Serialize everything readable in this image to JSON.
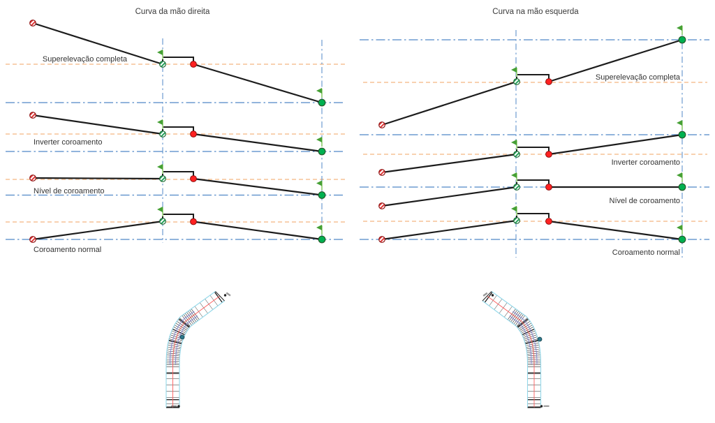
{
  "diagram": {
    "left_panel": {
      "title": "Curva da mão direita",
      "stages": [
        "Superelevação completa",
        "Inverter coroamento",
        "Nível de coroamento",
        "Coroamento normal"
      ]
    },
    "right_panel": {
      "title": "Curva na mão esquerda",
      "stages": [
        "Superelevação completa",
        "Inverter coroamento",
        "Nível de coroamento",
        "Coroamento normal"
      ]
    },
    "icons": {
      "start_marker": "red-hatched-circle",
      "crown_marker": "green-hatched-circle",
      "runoff_marker": "red-dot",
      "full_superelevation_marker": "green-dot",
      "station_flag": "green-flag"
    },
    "colors": {
      "profile_line": "#1c1c1c",
      "guide_dashed_orange": "#F5C296",
      "guide_dashdot_blue": "#4F87C7",
      "marker_red_fill": "#FF2121",
      "marker_red_border": "#8F1010",
      "marker_green_fill": "#00B050",
      "marker_green_border": "#245B2A",
      "flag_pole_green": "#A5D68A",
      "flag_triangle_green": "#46A035",
      "road_edge_cyan": "#93D8E9",
      "road_centerline_red": "#FF5C5C",
      "road_overlay_purple": "#8585D6",
      "road_tick_black": "#2B2B2B"
    }
  }
}
